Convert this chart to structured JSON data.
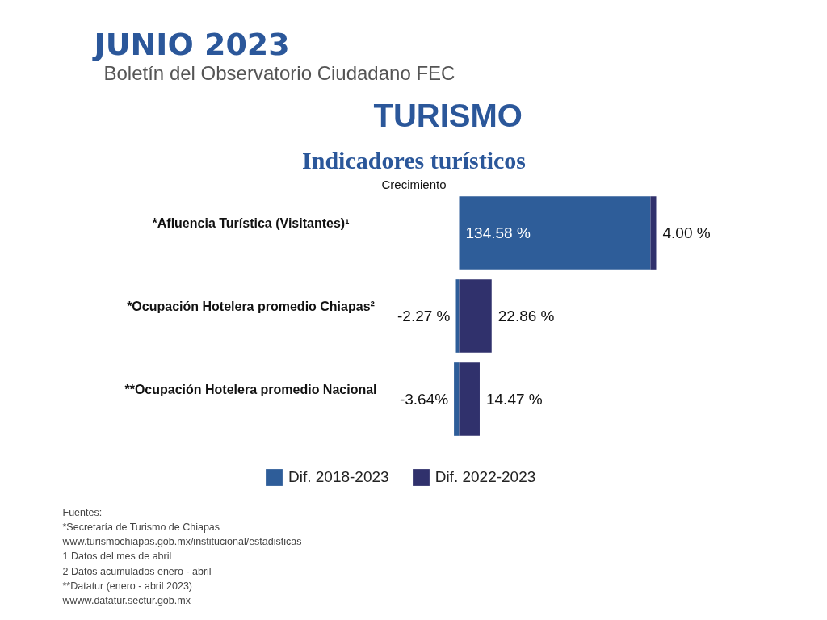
{
  "chart_data": {
    "type": "bar",
    "orientation": "horizontal",
    "stacked": true,
    "title": "Indicadores turísticos",
    "subtitle": "Crecimiento",
    "annotations": [
      "JUNIO 2023",
      "Boletín del Observatorio Ciudadano FEC",
      "TURISMO",
      "Fuentes:",
      "*Secretaría de Turismo de Chiapas",
      "www.turismochiapas.gob.mx/institucional/estadisticas",
      "1 Datos del mes de abril",
      "2 Datos acumulados enero - abril",
      "**Datatur (enero - abril 2023)",
      "wwww.datatur.sectur.gob.mx"
    ],
    "categories": [
      "*Afluencia Turística (Visitantes)¹",
      "*Ocupación Hotelera promedio Chiapas²",
      "**Ocupación Hotelera promedio Nacional"
    ],
    "series": [
      {
        "name": "Dif. 2018-2023",
        "color": "#2e5d99",
        "values": [
          134.58,
          -2.27,
          -3.64
        ],
        "value_labels": [
          "134.58 %",
          "-2.27 %",
          "-3.64%"
        ]
      },
      {
        "name": "Dif. 2022-2023",
        "color": "#30316c",
        "values": [
          4.0,
          22.86,
          14.47
        ],
        "value_labels": [
          "4.00 %",
          "22.86 %",
          "14.47 %"
        ]
      }
    ],
    "legend": "bottom",
    "tick_labels": "y"
  }
}
